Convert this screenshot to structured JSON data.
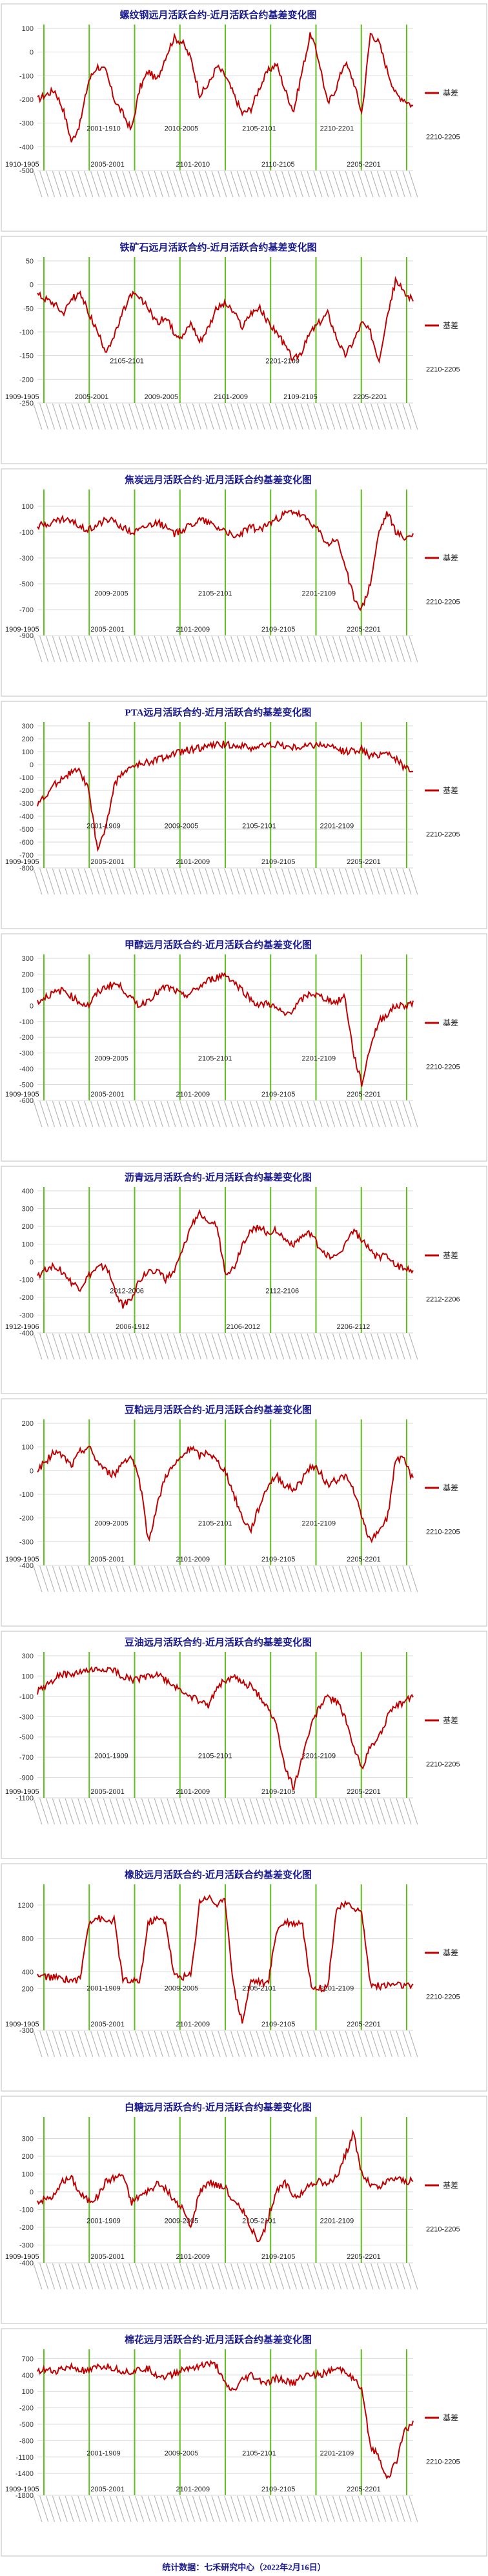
{
  "footer": {
    "text": "统计数据：七禾研究中心（2022年2月16日）"
  },
  "colors": {
    "line": "#c00000",
    "vline": "#5fbf1e",
    "grid": "#d9d9d9",
    "frame": "#bfbfbf"
  },
  "chart_data": [
    {
      "type": "line",
      "title": "螺纹钢远月活跃合约-近月活跃合约基差变化图",
      "legend": "基差",
      "legend_position": "right",
      "yticks": [
        100,
        0,
        -100,
        -200,
        -300,
        -400,
        -500
      ],
      "ylim": [
        -500,
        100
      ],
      "contracts_up": [
        "2001-1910",
        "2010-2005",
        "2105-2101",
        "2210-2201"
      ],
      "contracts_down": [
        "1910-1905",
        "2005-2001",
        "2101-2010",
        "2110-2105",
        "2205-2201"
      ],
      "extra_label": "2210-2205",
      "trend": [
        -200,
        -180,
        -160,
        -240,
        -380,
        -300,
        -120,
        -60,
        -80,
        -200,
        -260,
        -330,
        -150,
        -80,
        -120,
        -20,
        60,
        40,
        -30,
        -180,
        -140,
        -60,
        -100,
        -180,
        -260,
        -240,
        -150,
        -80,
        -50,
        -160,
        -250,
        -80,
        80,
        -40,
        -220,
        -150,
        -40,
        -120,
        -260,
        80,
        40,
        -80,
        -180,
        -200,
        -230
      ]
    },
    {
      "type": "line",
      "title": "铁矿石远月活跃合约-近月活跃合约基差变化图",
      "legend": "基差",
      "legend_position": "right",
      "yticks": [
        50,
        0,
        -50,
        -100,
        -150,
        -200,
        -250
      ],
      "ylim": [
        -250,
        50
      ],
      "contracts_up": [
        "2105-2101",
        "2201-2109"
      ],
      "contracts_down": [
        "1909-1905",
        "2005-2001",
        "2009-2005",
        "2101-2009",
        "2109-2105",
        "2205-2201"
      ],
      "extra_label": "2210-2205",
      "trend": [
        -20,
        -30,
        -40,
        -60,
        -30,
        -20,
        -60,
        -100,
        -140,
        -110,
        -60,
        -20,
        -30,
        -50,
        -80,
        -70,
        -100,
        -110,
        -80,
        -120,
        -90,
        -50,
        -40,
        -60,
        -90,
        -60,
        -50,
        -80,
        -100,
        -130,
        -160,
        -140,
        -100,
        -80,
        -60,
        -110,
        -150,
        -120,
        -80,
        -100,
        -160,
        -60,
        10,
        -20,
        -30
      ]
    },
    {
      "type": "line",
      "title": "焦炭远月活跃合约-近月活跃合约基差变化图",
      "legend": "基差",
      "legend_position": "right",
      "yticks": [
        100,
        -100,
        -300,
        -500,
        -700,
        -900
      ],
      "ylim": [
        -900,
        200
      ],
      "contracts_up": [
        "2009-2005",
        "2105-2101",
        "2201-2109"
      ],
      "contracts_down": [
        "1909-1905",
        "2005-2001",
        "2101-2009",
        "2109-2105",
        "2205-2201"
      ],
      "extra_label": "2210-2205",
      "trend": [
        -50,
        -40,
        -20,
        0,
        -20,
        -60,
        -80,
        -40,
        0,
        -20,
        -60,
        -100,
        -80,
        -40,
        -20,
        -60,
        -120,
        -80,
        -40,
        0,
        -20,
        -60,
        -80,
        -150,
        -100,
        -60,
        -80,
        -40,
        0,
        40,
        60,
        20,
        -20,
        -100,
        -200,
        -150,
        -350,
        -600,
        -700,
        -500,
        -100,
        50,
        -100,
        -150,
        -120
      ]
    },
    {
      "type": "line",
      "title": "PTA远月活跃合约-近月活跃合约基差变化图",
      "legend": "基差",
      "legend_position": "right",
      "yticks": [
        300,
        200,
        100,
        0,
        -100,
        -200,
        -300,
        -400,
        -500,
        -600,
        -700,
        -800
      ],
      "ylim": [
        -800,
        300
      ],
      "contracts_up": [
        "2001-1909",
        "2009-2005",
        "2105-2101",
        "2201-2109"
      ],
      "contracts_down": [
        "1909-1905",
        "2005-2001",
        "2101-2009",
        "2109-2105",
        "2205-2201"
      ],
      "extra_label": "2210-2205",
      "trend": [
        -300,
        -250,
        -150,
        -100,
        -60,
        -50,
        -200,
        -650,
        -500,
        -150,
        -60,
        -20,
        0,
        20,
        40,
        60,
        80,
        100,
        120,
        130,
        140,
        150,
        160,
        150,
        140,
        130,
        140,
        150,
        160,
        140,
        130,
        140,
        150,
        160,
        140,
        120,
        100,
        110,
        120,
        60,
        80,
        100,
        40,
        -20,
        -40
      ]
    },
    {
      "type": "line",
      "title": "甲醇远月活跃合约-近月活跃合约基差变化图",
      "legend": "基差",
      "legend_position": "right",
      "yticks": [
        300,
        200,
        100,
        0,
        -100,
        -200,
        -300,
        -400,
        -500,
        -600
      ],
      "ylim": [
        -600,
        300
      ],
      "contracts_up": [
        "2009-2005",
        "2105-2101",
        "2201-2109"
      ],
      "contracts_down": [
        "1909-1905",
        "2005-2001",
        "2101-2009",
        "2109-2105",
        "2205-2201"
      ],
      "extra_label": "2210-2205",
      "trend": [
        20,
        60,
        80,
        100,
        60,
        20,
        0,
        80,
        120,
        140,
        110,
        40,
        0,
        40,
        80,
        120,
        100,
        60,
        80,
        120,
        160,
        180,
        200,
        150,
        100,
        40,
        0,
        20,
        -20,
        -60,
        -20,
        40,
        80,
        60,
        40,
        20,
        60,
        -300,
        -500,
        -250,
        -100,
        -50,
        0,
        0,
        20
      ]
    },
    {
      "type": "line",
      "title": "沥青远月活跃合约-近月活跃合约基差变化图",
      "legend": "基差",
      "legend_position": "right",
      "yticks": [
        400,
        300,
        200,
        100,
        0,
        -100,
        -200,
        -300,
        -400
      ],
      "ylim": [
        -400,
        400
      ],
      "contracts_up": [
        "2012-2006",
        "2112-2106"
      ],
      "contracts_down": [
        "1912-1906",
        "2006-1912",
        "2106-2012",
        "2206-2112"
      ],
      "extra_label": "2212-2206",
      "trend": [
        -80,
        -40,
        -20,
        -60,
        -120,
        -150,
        -80,
        -40,
        -20,
        -150,
        -250,
        -200,
        -100,
        -60,
        -40,
        -100,
        -60,
        60,
        200,
        280,
        240,
        200,
        -60,
        -40,
        100,
        180,
        200,
        160,
        180,
        120,
        100,
        140,
        160,
        80,
        40,
        20,
        100,
        180,
        120,
        60,
        20,
        40,
        -20,
        -40,
        -40
      ]
    },
    {
      "type": "line",
      "title": "豆粕远月活跃合约-近月活跃合约基差变化图",
      "legend": "基差",
      "legend_position": "right",
      "yticks": [
        200,
        100,
        0,
        -100,
        -200,
        -300,
        -400
      ],
      "ylim": [
        -400,
        200
      ],
      "contracts_up": [
        "2009-2005",
        "2105-2101",
        "2201-2109"
      ],
      "contracts_down": [
        "1909-1905",
        "2005-2001",
        "2101-2009",
        "2109-2105",
        "2205-2201"
      ],
      "extra_label": "2210-2205",
      "trend": [
        0,
        40,
        80,
        60,
        20,
        80,
        100,
        40,
        0,
        -20,
        40,
        60,
        -50,
        -300,
        -150,
        -20,
        20,
        60,
        100,
        60,
        80,
        40,
        0,
        -100,
        -200,
        -250,
        -150,
        -60,
        -20,
        -60,
        -80,
        -40,
        20,
        0,
        -60,
        -40,
        -20,
        -80,
        -200,
        -300,
        -250,
        -200,
        60,
        40,
        -40
      ]
    },
    {
      "type": "line",
      "title": "豆油远月活跃合约-近月活跃合约基差变化图",
      "legend": "基差",
      "legend_position": "right",
      "yticks": [
        300,
        100,
        -100,
        -300,
        -500,
        -700,
        -900,
        -1100
      ],
      "ylim": [
        -1100,
        300
      ],
      "contracts_up": [
        "2001-1909",
        "2105-2101",
        "2201-2109"
      ],
      "contracts_down": [
        "1909-1905",
        "2005-2001",
        "2101-2009",
        "2109-2105",
        "2205-2201"
      ],
      "extra_label": "2210-2205",
      "trend": [
        -50,
        0,
        80,
        120,
        100,
        140,
        150,
        160,
        170,
        150,
        100,
        60,
        80,
        100,
        120,
        60,
        0,
        -50,
        -100,
        -150,
        -200,
        0,
        60,
        80,
        40,
        0,
        -100,
        -200,
        -400,
        -800,
        -1000,
        -700,
        -400,
        -200,
        -100,
        -150,
        -300,
        -600,
        -800,
        -600,
        -500,
        -300,
        -200,
        -150,
        -100
      ]
    },
    {
      "type": "line",
      "title": "橡胶远月活跃合约-近月活跃合约基差变化图",
      "legend": "基差",
      "legend_position": "right",
      "yticks": [
        1200,
        800,
        400,
        200,
        -300
      ],
      "ylim": [
        -300,
        1400
      ],
      "contracts_up": [
        "2001-1909",
        "2009-2005",
        "2105-2101",
        "2201-2109"
      ],
      "contracts_down": [
        "1909-1905",
        "2005-2001",
        "2101-2009",
        "2109-2105",
        "2205-2201"
      ],
      "extra_label": "2210-2205",
      "trend": [
        350,
        340,
        330,
        320,
        300,
        310,
        1000,
        1050,
        1000,
        1020,
        300,
        280,
        290,
        1000,
        1030,
        1010,
        350,
        340,
        360,
        1250,
        1300,
        1200,
        1250,
        200,
        -200,
        300,
        280,
        250,
        900,
        1000,
        980,
        1000,
        250,
        200,
        220,
        1150,
        1200,
        1180,
        1100,
        250,
        230,
        240,
        250,
        230,
        220
      ]
    },
    {
      "type": "line",
      "title": "白糖远月活跃合约-近月活跃合约基差变化图",
      "legend": "基差",
      "legend_position": "right",
      "yticks": [
        300,
        200,
        100,
        0,
        -100,
        -200,
        -300,
        -400
      ],
      "ylim": [
        -400,
        400
      ],
      "contracts_up": [
        "2001-1909",
        "2009-2005",
        "2105-2101",
        "2201-2109"
      ],
      "contracts_down": [
        "1909-1905",
        "2005-2001",
        "2101-2009",
        "2109-2105",
        "2205-2201"
      ],
      "extra_label": "2210-2205",
      "trend": [
        -50,
        -40,
        -20,
        60,
        80,
        -10,
        -50,
        -30,
        60,
        80,
        100,
        -60,
        -20,
        0,
        40,
        20,
        -50,
        -100,
        -200,
        0,
        60,
        40,
        20,
        -60,
        -100,
        -200,
        -300,
        -150,
        0,
        50,
        -20,
        -10,
        40,
        60,
        40,
        80,
        200,
        330,
        100,
        40,
        20,
        60,
        80,
        60,
        60
      ]
    },
    {
      "type": "line",
      "title": "棉花远月活跃合约-近月活跃合约基差变化图",
      "legend": "基差",
      "legend_position": "right",
      "yticks": [
        700,
        400,
        100,
        -200,
        -500,
        -800,
        -1100,
        -1400,
        -1800
      ],
      "ylim": [
        -1800,
        800
      ],
      "contracts_up": [
        "2001-1909",
        "2009-2005",
        "2105-2101",
        "2201-2109"
      ],
      "contracts_down": [
        "1909-1905",
        "2005-2001",
        "2101-2009",
        "2109-2105",
        "2205-2201"
      ],
      "extra_label": "2210-2205",
      "trend": [
        500,
        480,
        460,
        520,
        540,
        500,
        460,
        540,
        560,
        520,
        480,
        460,
        500,
        520,
        400,
        380,
        420,
        500,
        540,
        580,
        600,
        560,
        200,
        100,
        300,
        400,
        300,
        250,
        350,
        300,
        250,
        380,
        420,
        400,
        450,
        500,
        480,
        350,
        100,
        -900,
        -1100,
        -1500,
        -1200,
        -600,
        -500
      ]
    }
  ]
}
